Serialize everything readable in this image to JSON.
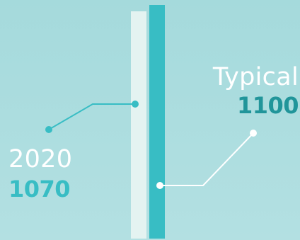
{
  "chart_data": {
    "type": "bar",
    "categories": [
      "2020",
      "Typical"
    ],
    "values": [
      1070,
      1100
    ],
    "value_labels": [
      "1070",
      "1100"
    ],
    "ylim": [
      0,
      1100
    ],
    "grid": false,
    "legend": "none"
  },
  "colors": {
    "background": "#a9dbdd",
    "bar_2020": "#e4f3f1",
    "bar_typical": "#38bdc4",
    "value_2020": "#38bdc4",
    "value_typical": "#21959a",
    "leader_2020": "#38bdc4",
    "leader_typical": "#ffffff",
    "category_text": "#ffffff"
  }
}
